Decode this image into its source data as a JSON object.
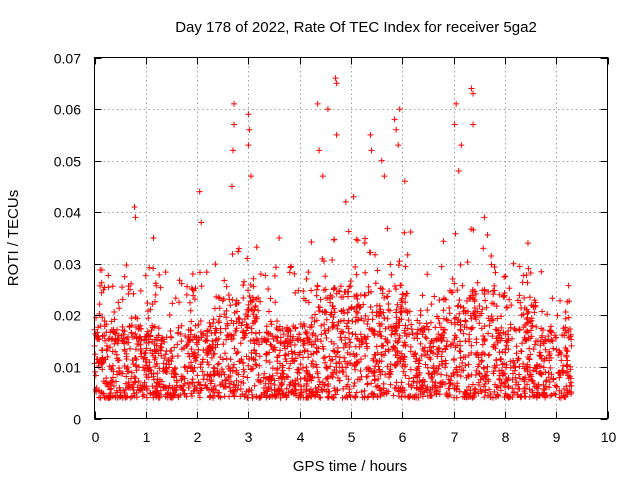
{
  "chart_data": {
    "type": "scatter",
    "title": "Day 178 of 2022, Rate Of TEC Index for receiver 5ga2",
    "xlabel": "GPS time / hours",
    "ylabel": "ROTI / TECUs",
    "xlim": [
      0,
      10
    ],
    "ylim": [
      0,
      0.07
    ],
    "xticks": [
      0,
      1,
      2,
      3,
      4,
      5,
      6,
      7,
      8,
      9,
      10
    ],
    "yticks": [
      0,
      0.01,
      0.02,
      0.03,
      0.04,
      0.05,
      0.06,
      0.07
    ],
    "ytick_labels": [
      "0",
      "0.01",
      "0.02",
      "0.03",
      "0.04",
      "0.05",
      "0.06",
      "0.07"
    ],
    "xtick_labels": [
      "0",
      "1",
      "2",
      "3",
      "4",
      "5",
      "6",
      "7",
      "8",
      "9",
      "10"
    ],
    "grid": true,
    "marker": "+",
    "color": "#ff0000",
    "x_data_range": [
      0.0,
      9.3
    ],
    "notable_points": [
      {
        "x": 0.78,
        "y": 0.041
      },
      {
        "x": 0.8,
        "y": 0.039
      },
      {
        "x": 1.15,
        "y": 0.035
      },
      {
        "x": 2.05,
        "y": 0.044
      },
      {
        "x": 2.08,
        "y": 0.038
      },
      {
        "x": 2.72,
        "y": 0.061
      },
      {
        "x": 2.72,
        "y": 0.057
      },
      {
        "x": 2.7,
        "y": 0.052
      },
      {
        "x": 2.68,
        "y": 0.045
      },
      {
        "x": 3.0,
        "y": 0.059
      },
      {
        "x": 3.02,
        "y": 0.056
      },
      {
        "x": 3.0,
        "y": 0.053
      },
      {
        "x": 3.05,
        "y": 0.047
      },
      {
        "x": 3.6,
        "y": 0.035
      },
      {
        "x": 4.35,
        "y": 0.061
      },
      {
        "x": 4.38,
        "y": 0.052
      },
      {
        "x": 4.45,
        "y": 0.047
      },
      {
        "x": 4.55,
        "y": 0.06
      },
      {
        "x": 4.7,
        "y": 0.066
      },
      {
        "x": 4.72,
        "y": 0.065
      },
      {
        "x": 4.72,
        "y": 0.055
      },
      {
        "x": 4.9,
        "y": 0.042
      },
      {
        "x": 5.05,
        "y": 0.043
      },
      {
        "x": 5.38,
        "y": 0.055
      },
      {
        "x": 5.4,
        "y": 0.052
      },
      {
        "x": 5.6,
        "y": 0.05
      },
      {
        "x": 5.65,
        "y": 0.047
      },
      {
        "x": 5.85,
        "y": 0.058
      },
      {
        "x": 5.88,
        "y": 0.056
      },
      {
        "x": 5.95,
        "y": 0.06
      },
      {
        "x": 5.92,
        "y": 0.053
      },
      {
        "x": 6.05,
        "y": 0.046
      },
      {
        "x": 7.05,
        "y": 0.061
      },
      {
        "x": 7.02,
        "y": 0.057
      },
      {
        "x": 7.15,
        "y": 0.053
      },
      {
        "x": 7.1,
        "y": 0.048
      },
      {
        "x": 7.35,
        "y": 0.064
      },
      {
        "x": 7.38,
        "y": 0.063
      },
      {
        "x": 7.38,
        "y": 0.057
      },
      {
        "x": 7.6,
        "y": 0.039
      },
      {
        "x": 8.45,
        "y": 0.034
      }
    ]
  }
}
